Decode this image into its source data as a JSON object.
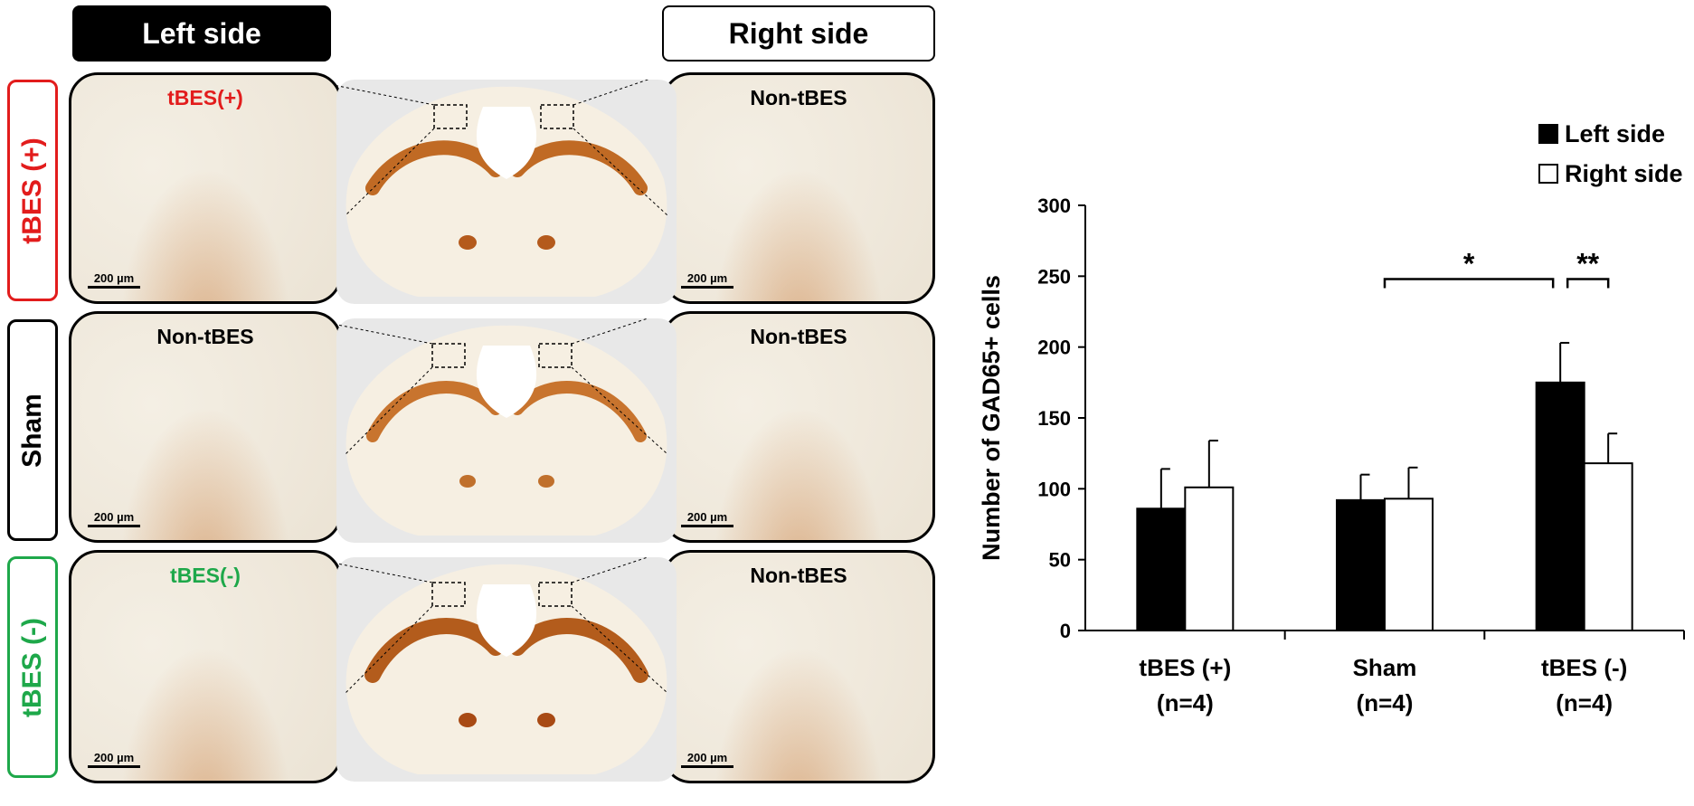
{
  "panels": {
    "header_left": "Left side",
    "header_right": "Right side",
    "rows": [
      {
        "row_label": "tBES (+)",
        "left_caption": "tBES(+)",
        "right_caption": "Non-tBES",
        "label_color": "#e21c1c"
      },
      {
        "row_label": "Sham",
        "left_caption": "Non-tBES",
        "right_caption": "Non-tBES",
        "label_color": "#000000"
      },
      {
        "row_label": "tBES (-)",
        "left_caption": "tBES(-)",
        "right_caption": "Non-tBES",
        "label_color": "#1ea84a"
      }
    ],
    "scale_bar": "200 µm"
  },
  "chart_data": {
    "type": "bar",
    "ylabel": "Number of GAD65+ cells",
    "ylim": [
      0,
      300
    ],
    "yticks": [
      0,
      50,
      100,
      150,
      200,
      250,
      300
    ],
    "categories": [
      "tBES (+)",
      "Sham",
      "tBES (-)"
    ],
    "category_subs": [
      "(n=4)",
      "(n=4)",
      "(n=4)"
    ],
    "series": [
      {
        "name": "Left side",
        "values": [
          86,
          92,
          175
        ],
        "errors": [
          28,
          18,
          28
        ],
        "fill": "#000000"
      },
      {
        "name": "Right side",
        "values": [
          101,
          93,
          118
        ],
        "errors": [
          33,
          22,
          21
        ],
        "fill": "#ffffff"
      }
    ],
    "legend_position": "top-right",
    "annotations": [
      {
        "text": "*",
        "from": "Sham",
        "to": "tBES (-) Left side",
        "height": 248
      },
      {
        "text": "**",
        "from": "tBES (-) Left side",
        "to": "tBES (-) Right side",
        "height": 248
      }
    ]
  }
}
